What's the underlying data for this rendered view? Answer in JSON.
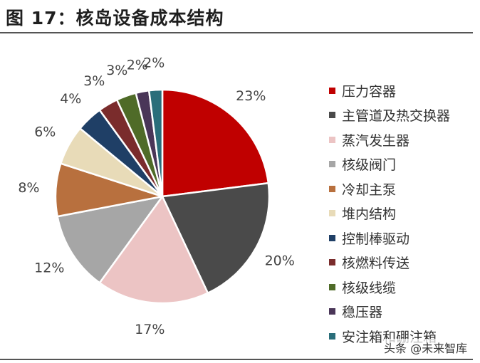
{
  "title": "图 17：核岛设备成本结构",
  "watermark": "头条 @未来智库",
  "chart_data": {
    "type": "pie",
    "title": "",
    "legend_position": "right",
    "slices": [
      {
        "label": "压力容器",
        "value": 23,
        "value_label": "23%",
        "color": "#c00000"
      },
      {
        "label": "主管道及热交换器",
        "value": 20,
        "value_label": "20%",
        "color": "#4a4a4a"
      },
      {
        "label": "蒸汽发生器",
        "value": 17,
        "value_label": "17%",
        "color": "#ecc4c4"
      },
      {
        "label": "核级阀门",
        "value": 12,
        "value_label": "12%",
        "color": "#a6a6a6"
      },
      {
        "label": "冷却主泵",
        "value": 8,
        "value_label": "8%",
        "color": "#b8703e"
      },
      {
        "label": "堆内结构",
        "value": 6,
        "value_label": "6%",
        "color": "#e8dbb8"
      },
      {
        "label": "控制棒驱动",
        "value": 4,
        "value_label": "4%",
        "color": "#1f3f66"
      },
      {
        "label": "核燃料传送",
        "value": 3,
        "value_label": "3%",
        "color": "#7a2c2c"
      },
      {
        "label": "核级线缆",
        "value": 3,
        "value_label": "3%",
        "color": "#4f6b28"
      },
      {
        "label": "稳压器",
        "value": 2,
        "value_label": "2%",
        "color": "#4a3658"
      },
      {
        "label": "安注箱和硼注箱",
        "value": 2,
        "value_label": "2%",
        "color": "#2a6e7a"
      }
    ]
  }
}
